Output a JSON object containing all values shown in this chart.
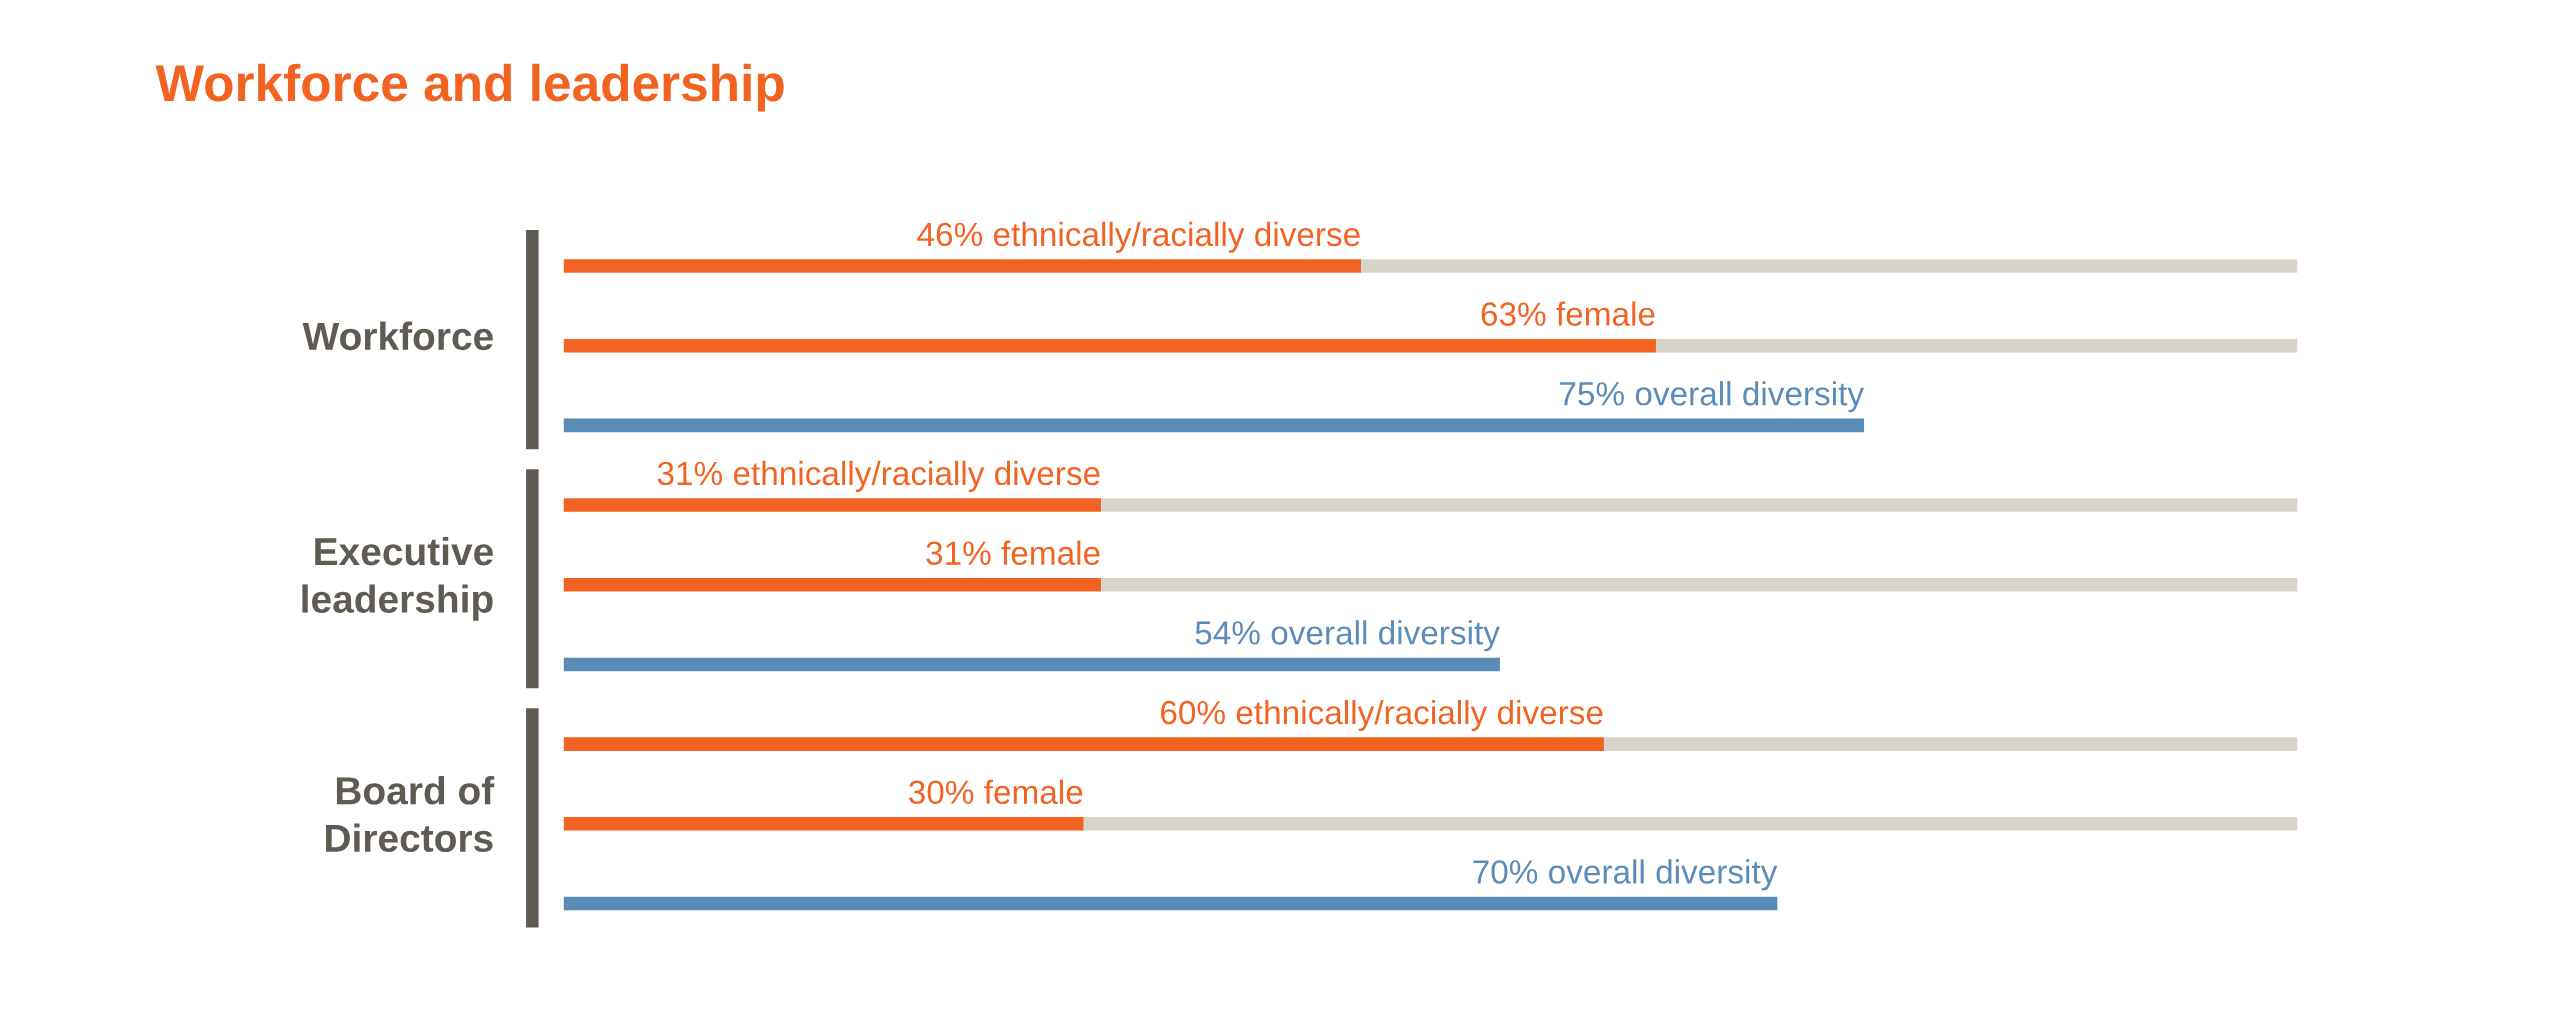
{
  "chart_data": {
    "type": "bar",
    "title": "Workforce and leadership",
    "orientation": "horizontal",
    "stacked": true,
    "xlim": [
      0,
      100
    ],
    "grid": false,
    "legend": false,
    "categories": [
      null,
      null,
      null,
      null,
      null,
      null,
      null,
      null,
      null
    ],
    "series": [
      {
        "colors": [
          "#f26322",
          "#f26322",
          "#5b8cb8",
          "#f26322",
          "#f26322",
          "#5b8cb8",
          "#f26322",
          "#f26322",
          "#5b8cb8"
        ],
        "values": [
          46,
          63,
          75,
          31,
          31,
          54,
          60,
          30,
          70
        ],
        "value_labels": [
          "46% ethnically/racially diverse",
          "63% female",
          "75% overall diversity",
          "31% ethnically/racially diverse",
          "31% female",
          "54% overall diversity",
          "60% ethnically/racially diverse",
          "30% female",
          "70% overall diversity"
        ]
      },
      {
        "color": "#d8d3cb",
        "values": [
          54,
          37,
          null,
          69,
          69,
          null,
          40,
          70,
          null
        ]
      }
    ],
    "annotations": [
      "Workforce",
      "Executive\nleadership",
      "Board of\nDirectors"
    ]
  }
}
